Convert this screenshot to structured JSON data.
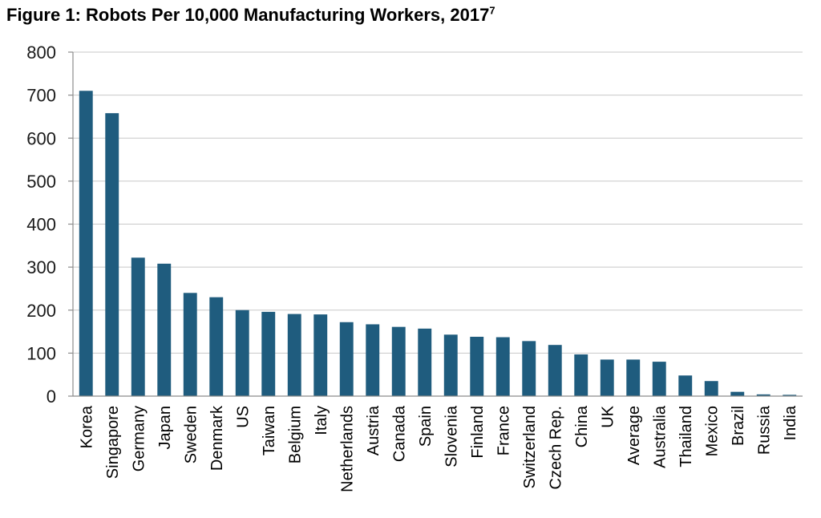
{
  "chart_data": {
    "type": "bar",
    "title": "Figure 1: Robots Per 10,000 Manufacturing Workers, 2017",
    "title_footnote": "7",
    "xlabel": "",
    "ylabel": "",
    "ylim": [
      0,
      800
    ],
    "yticks": [
      0,
      100,
      200,
      300,
      400,
      500,
      600,
      700,
      800
    ],
    "grid": true,
    "legend": "none",
    "bar_color": "#1f5c7e",
    "categories": [
      "Korea",
      "Singapore",
      "Germany",
      "Japan",
      "Sweden",
      "Denmark",
      "US",
      "Taiwan",
      "Belgium",
      "Italy",
      "Netherlands",
      "Austria",
      "Canada",
      "Spain",
      "Slovenia",
      "Finland",
      "France",
      "Switzerland",
      "Czech Rep.",
      "China",
      "UK",
      "Average",
      "Australia",
      "Thailand",
      "Mexico",
      "Brazil",
      "Russia",
      "India"
    ],
    "values": [
      710,
      658,
      322,
      308,
      240,
      230,
      200,
      196,
      191,
      190,
      172,
      167,
      161,
      157,
      143,
      138,
      137,
      128,
      119,
      97,
      85,
      85,
      80,
      48,
      35,
      10,
      4,
      3
    ]
  }
}
